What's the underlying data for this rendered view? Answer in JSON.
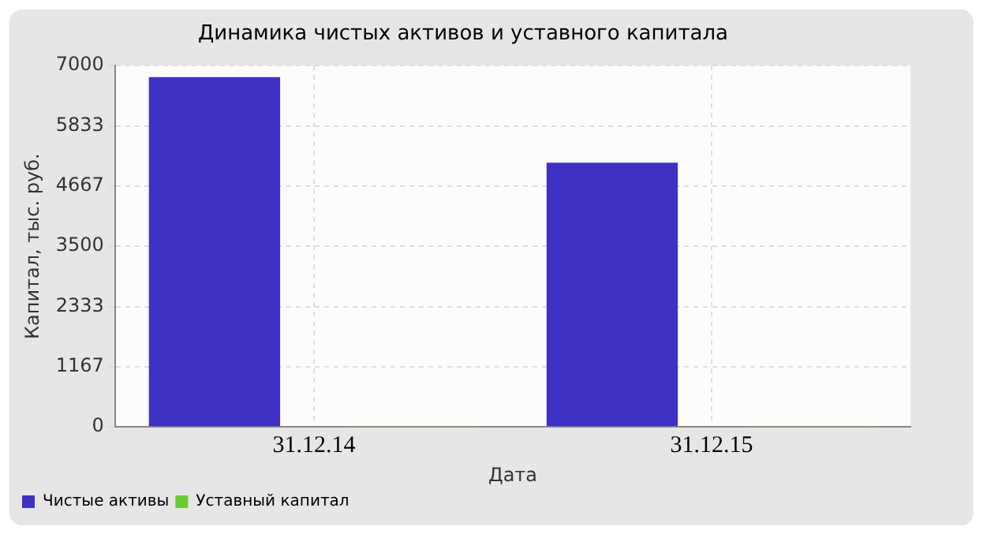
{
  "chart_data": {
    "type": "bar",
    "title": "Динамика чистых активов и уставного капитала",
    "xlabel": "Дата",
    "ylabel": "Капитал, тыс. руб.",
    "categories": [
      "31.12.14",
      "31.12.15"
    ],
    "series": [
      {
        "name": "Чистые активы",
        "color": "#3f31c4",
        "values": [
          6778,
          5118
        ]
      },
      {
        "name": "Уставный капитал",
        "color": "#66cc33",
        "values": [
          10,
          10
        ]
      }
    ],
    "ylim": [
      0,
      7000
    ],
    "yticks": [
      0,
      1167,
      2333,
      3500,
      4667,
      5833,
      7000
    ],
    "grid": true,
    "legend": "bottom left"
  }
}
